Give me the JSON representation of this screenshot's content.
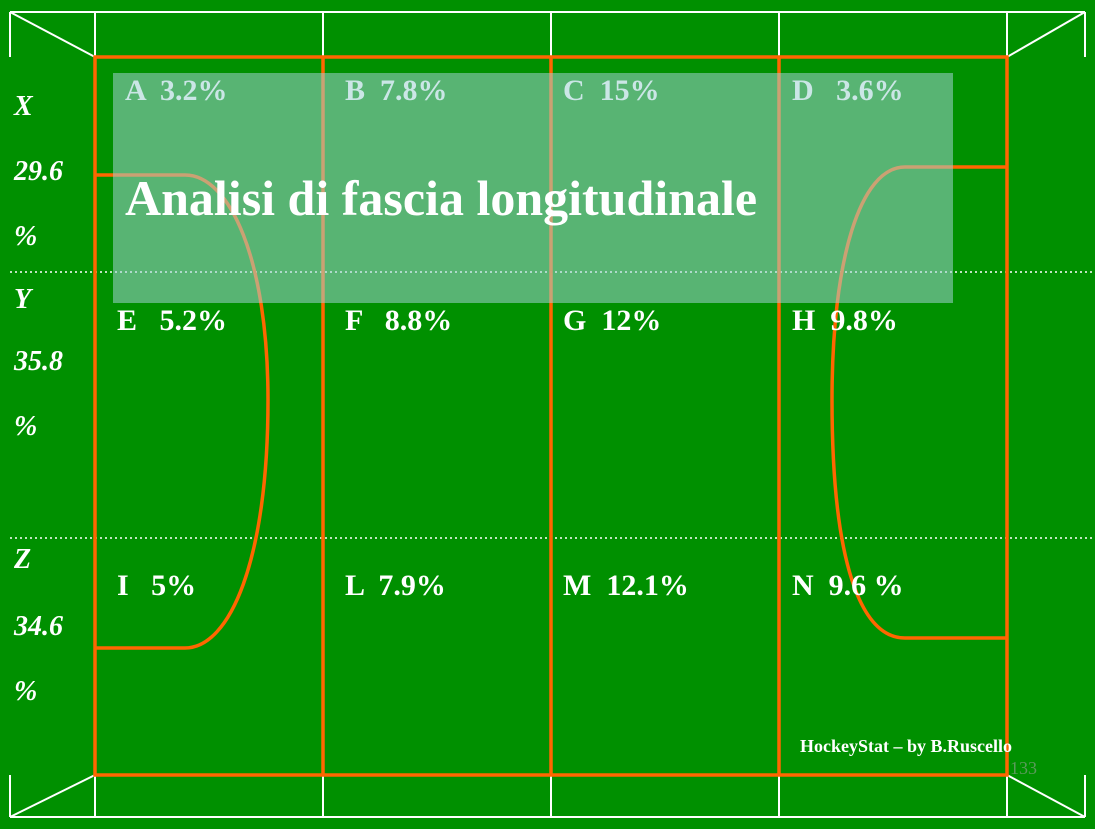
{
  "title": "Analisi di fascia longitudinale",
  "zones": [
    "A  3.2%",
    "B  7.8%",
    "C  15%",
    "D   3.6%",
    "E   5.2%",
    "F   8.8%",
    "G  12%",
    "H  9.8%",
    "I   5%",
    "L  7.9%",
    "M  12.1%",
    "N  9.6 %"
  ],
  "bands": [
    {
      "letter": "X",
      "value": "29.6",
      "unit": "%"
    },
    {
      "letter": "Y",
      "value": "35.8",
      "unit": "%"
    },
    {
      "letter": "Z",
      "value": "34.6",
      "unit": "%"
    }
  ],
  "footer": "HockeyStat – by B.Ruscello",
  "page_number": "133"
}
